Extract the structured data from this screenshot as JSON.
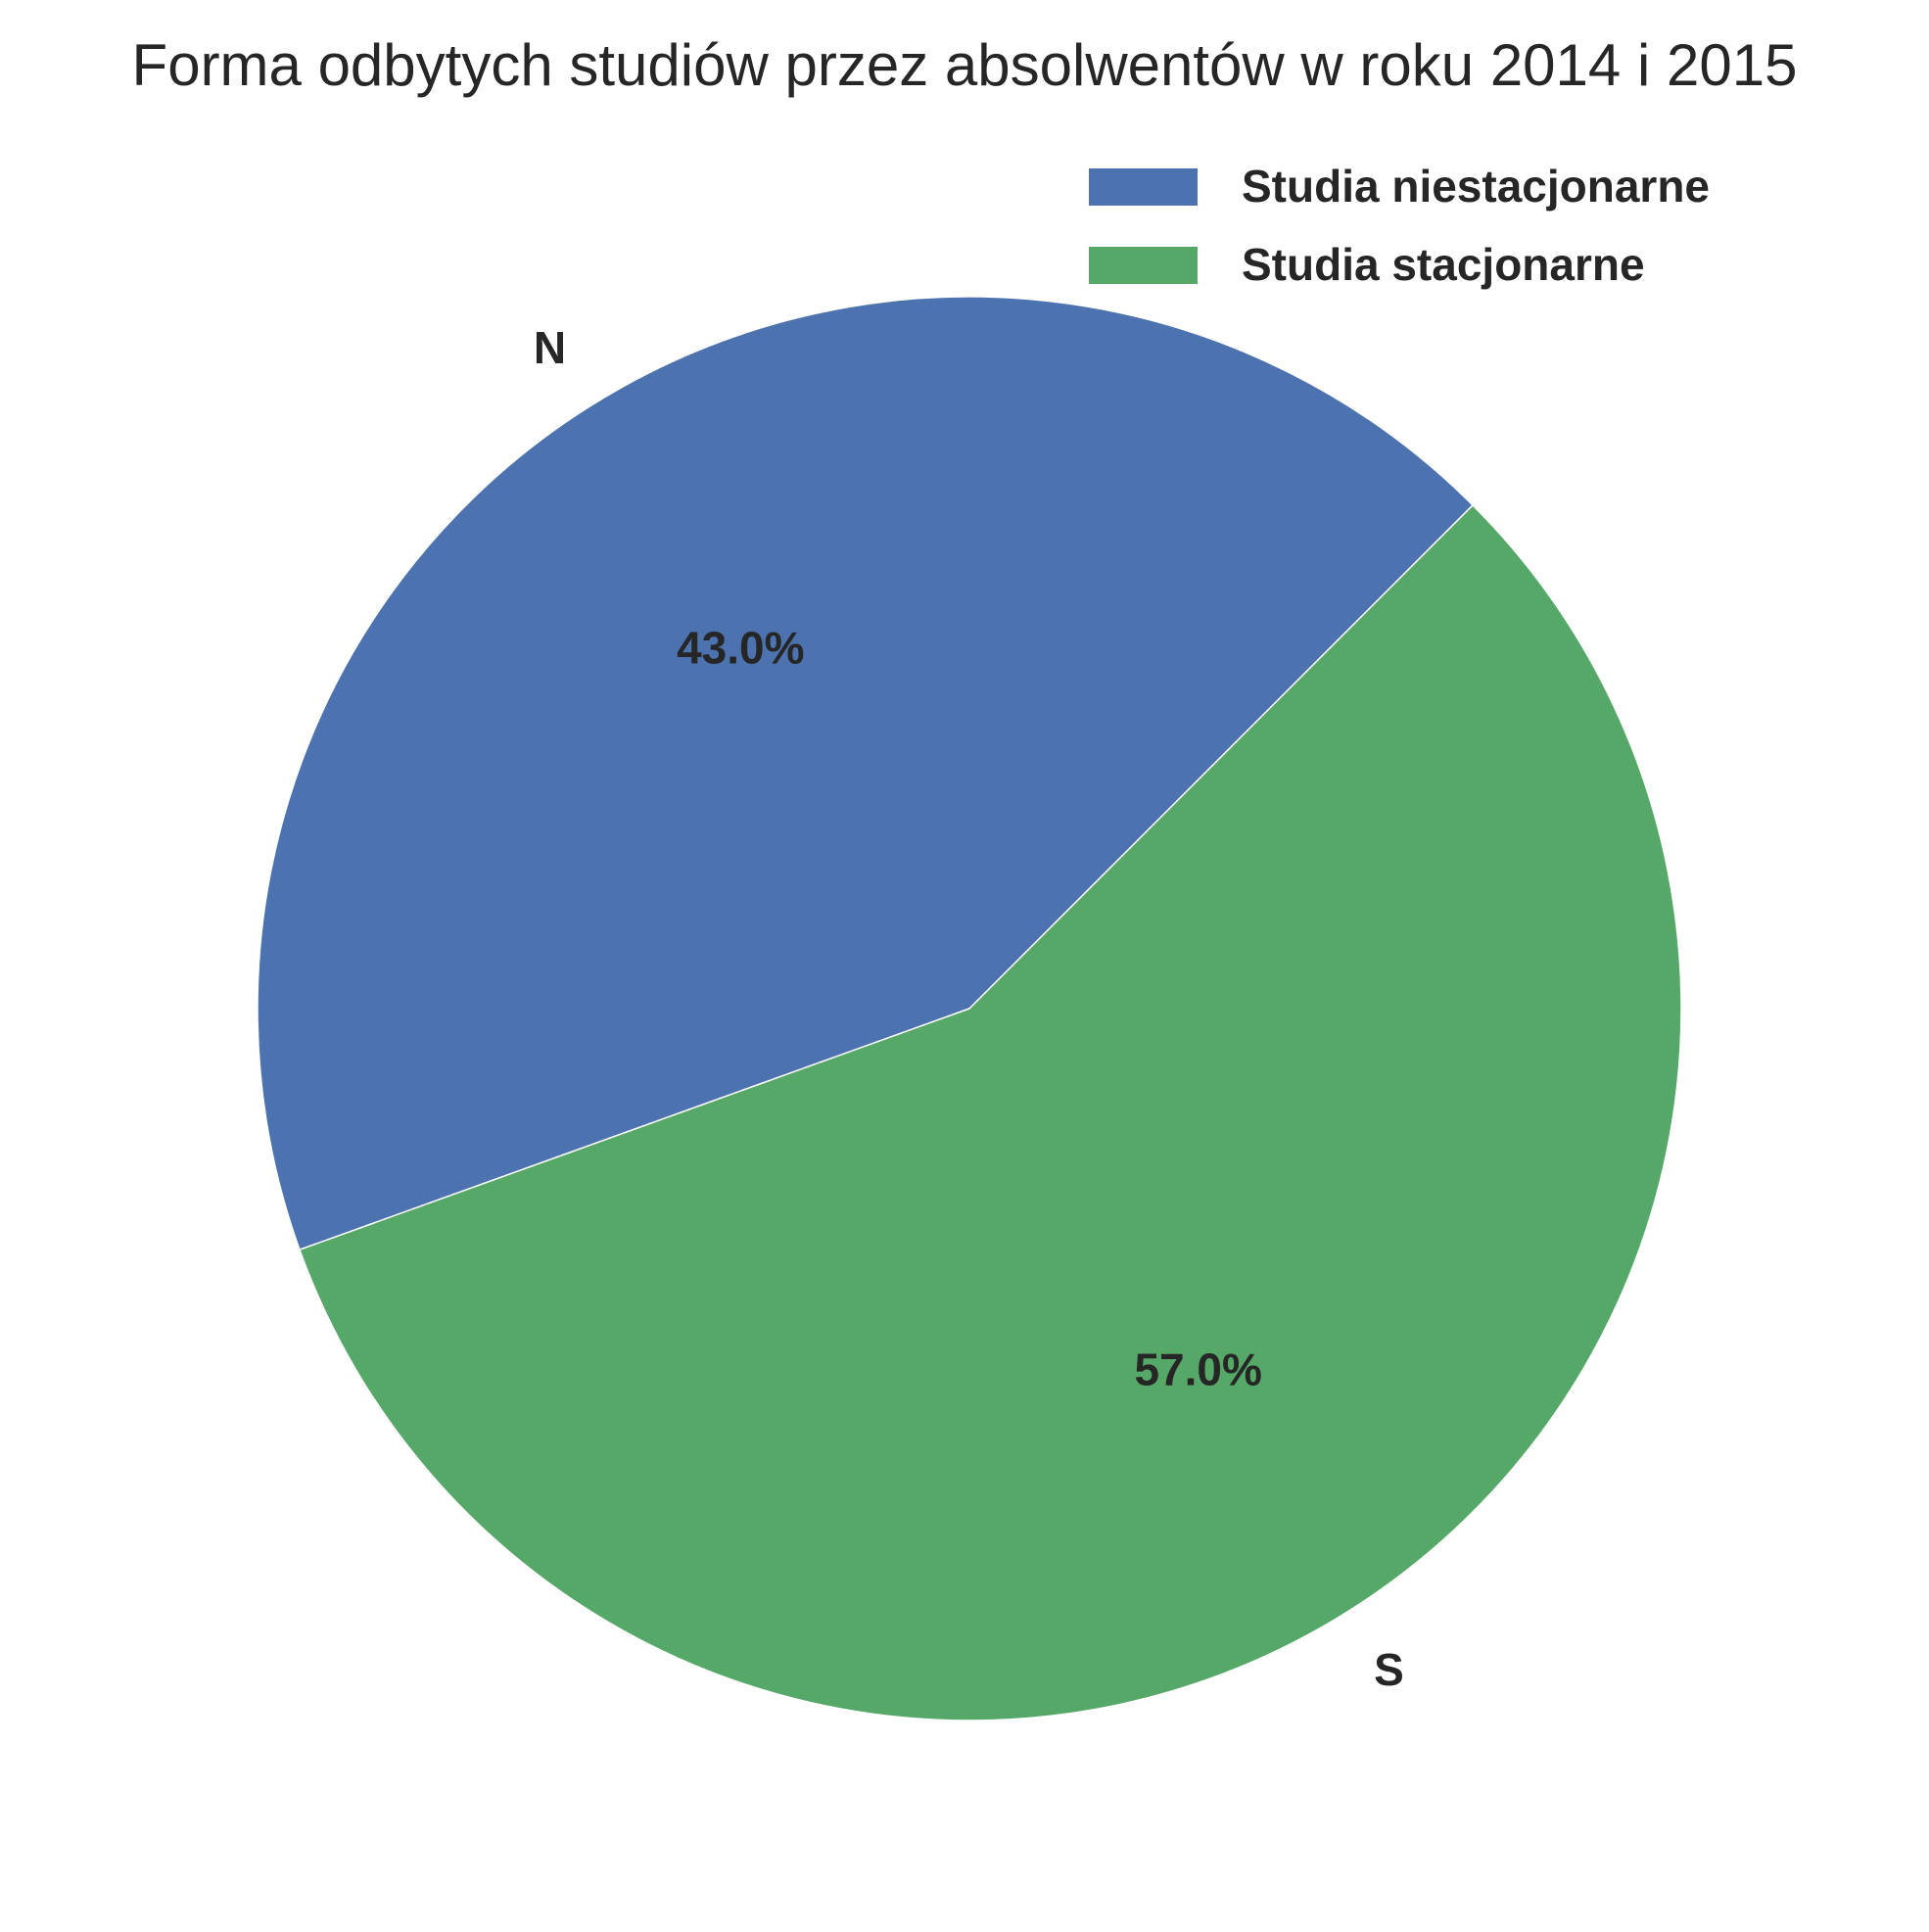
{
  "chart_data": {
    "type": "pie",
    "title": "Forma odbytych studiów przez absolwentów w roku 2014 i 2015",
    "start_angle_deg": 45,
    "direction": "counterclockwise",
    "legend_placement": "top-right",
    "slices": [
      {
        "label": "N",
        "legend": "Studia niestacjonarne",
        "value": 43.0,
        "pct_text": "43.0%",
        "color": "#4c72b0"
      },
      {
        "label": "S",
        "legend": "Studia stacjonarne",
        "value": 57.0,
        "pct_text": "57.0%",
        "color": "#55a868"
      }
    ]
  }
}
